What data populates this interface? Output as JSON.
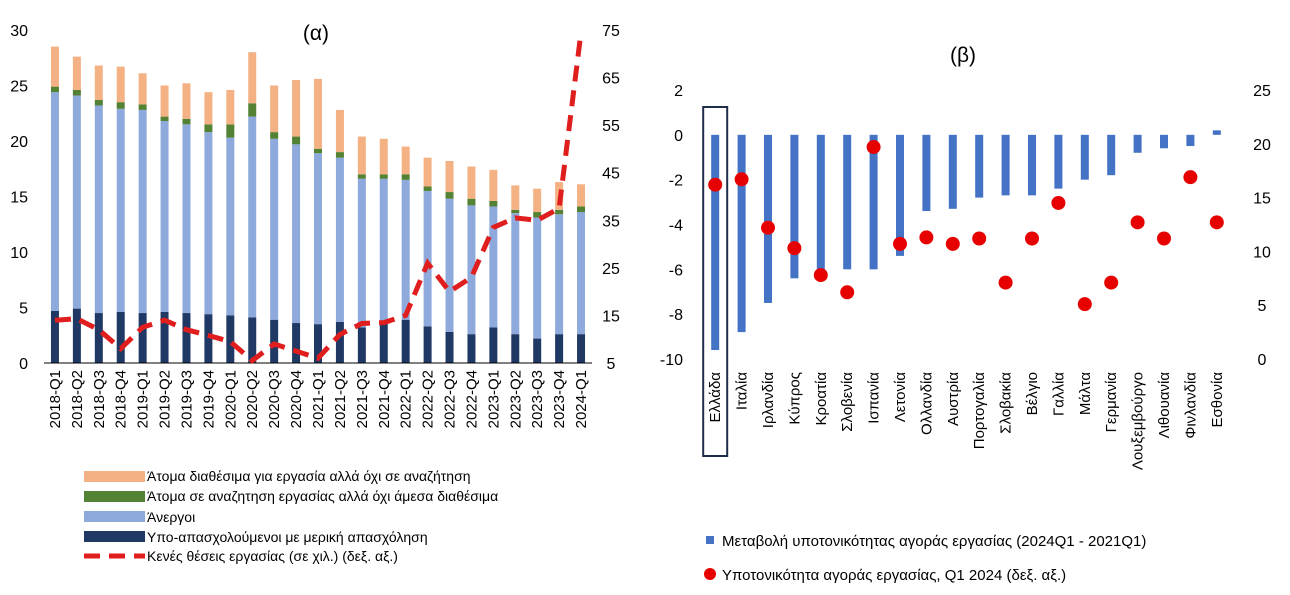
{
  "colors": {
    "available_not_searching": "#F4B183",
    "searching_not_available": "#548235",
    "unemployed": "#8EA9DB",
    "underemployed": "#203864",
    "vacancies": "#E01E1E",
    "change_bar": "#4472C4",
    "slack_dot": "#E60000"
  },
  "chart_data": [
    {
      "type": "bar",
      "stacked": true,
      "title": "(α)",
      "categories": [
        "2018-Q1",
        "2018-Q2",
        "2018-Q3",
        "2018-Q4",
        "2019-Q1",
        "2019-Q2",
        "2019-Q3",
        "2019-Q4",
        "2020-Q1",
        "2020-Q2",
        "2020-Q3",
        "2020-Q4",
        "2021-Q1",
        "2021-Q2",
        "2021-Q3",
        "2021-Q4",
        "2022-Q1",
        "2022-Q2",
        "2022-Q3",
        "2022-Q4",
        "2023-Q1",
        "2023-Q2",
        "2023-Q3",
        "2023-Q4",
        "2024-Q1"
      ],
      "ylim": [
        0,
        30
      ],
      "yticks": [
        0,
        5,
        10,
        15,
        20,
        25,
        30
      ],
      "y2lim": [
        5,
        75
      ],
      "y2ticks": [
        5,
        15,
        25,
        35,
        45,
        55,
        65,
        75
      ],
      "grid": false,
      "legend_position": "bottom",
      "series": [
        {
          "name": "Υπο-απασχολούμενοι με μερική απασχόληση",
          "axis": "left",
          "kind": "bar",
          "values": [
            4.7,
            4.9,
            4.5,
            4.6,
            4.5,
            4.6,
            4.5,
            4.4,
            4.3,
            4.1,
            3.9,
            3.6,
            3.5,
            3.7,
            3.2,
            3.8,
            3.9,
            3.3,
            2.8,
            2.6,
            3.2,
            2.6,
            2.2,
            2.6,
            2.6
          ]
        },
        {
          "name": "Άνεργοι",
          "axis": "left",
          "kind": "bar",
          "values": [
            19.7,
            19.2,
            18.7,
            18.3,
            18.3,
            17.2,
            17.0,
            16.4,
            16.0,
            18.1,
            16.3,
            16.1,
            15.4,
            14.8,
            13.4,
            12.8,
            12.6,
            12.2,
            12.0,
            11.6,
            10.9,
            10.9,
            10.9,
            10.8,
            11.0
          ]
        },
        {
          "name": "Άτομα σε αναζητηση εργασίας αλλά όχι άμεσα διαθέσιμα",
          "axis": "left",
          "kind": "bar",
          "values": [
            0.5,
            0.5,
            0.5,
            0.6,
            0.5,
            0.4,
            0.5,
            0.7,
            1.2,
            1.2,
            0.6,
            0.7,
            0.4,
            0.5,
            0.4,
            0.4,
            0.5,
            0.4,
            0.6,
            0.6,
            0.5,
            0.3,
            0.5,
            0.4,
            0.5
          ]
        },
        {
          "name": "Άτομα διαθέσιμα για εργασία αλλά όχι σε αναζήτηση",
          "axis": "left",
          "kind": "bar",
          "values": [
            3.6,
            3.0,
            3.1,
            3.2,
            2.8,
            2.8,
            3.2,
            2.9,
            3.1,
            4.6,
            4.2,
            5.1,
            6.3,
            3.8,
            3.4,
            3.2,
            2.5,
            2.6,
            2.8,
            2.9,
            2.8,
            2.2,
            2.1,
            2.5,
            2.0
          ]
        },
        {
          "name": "Κενές θέσεις εργασίας (σε χιλ.) (δεξ. αξ.)",
          "axis": "right",
          "kind": "line",
          "dashed": true,
          "values": [
            14.0,
            14.3,
            12.0,
            8.0,
            12.5,
            14.0,
            12.0,
            10.8,
            9.5,
            5.5,
            9.0,
            7.5,
            6.0,
            11.0,
            13.3,
            13.5,
            15.0,
            26.0,
            20.0,
            23.0,
            33.5,
            35.5,
            35.0,
            37.5,
            74.5
          ]
        }
      ]
    },
    {
      "type": "bar",
      "title": "(β)",
      "categories": [
        "Ελλάδα",
        "Ιταλία",
        "Ιρλανδία",
        "Κύπρος",
        "Κροατία",
        "Σλοβενία",
        "Ισπανία",
        "Λετονία",
        "Ολλανδία",
        "Αυστρία",
        "Πορτογαλία",
        "Σλοβακία",
        "Βέλγιο",
        "Γαλλία",
        "Μάλτα",
        "Γερμανία",
        "Λουξεμβούργο",
        "Λιθουανία",
        "Φινλανδία",
        "Εσθονία"
      ],
      "highlighted_category": "Ελλάδα",
      "ylim": [
        -10,
        2
      ],
      "yticks": [
        -10,
        -8,
        -6,
        -4,
        -2,
        0,
        2
      ],
      "y2lim": [
        0,
        25
      ],
      "y2ticks": [
        0,
        5,
        10,
        15,
        20,
        25
      ],
      "grid": false,
      "legend_position": "bottom",
      "series": [
        {
          "name": "Μεταβολή υποτονικότητας αγοράς εργασίας (2024Q1 - 2021Q1)",
          "axis": "left",
          "kind": "bar",
          "values": [
            -9.6,
            -8.8,
            -7.5,
            -6.4,
            -6.2,
            -6.0,
            -6.0,
            -5.4,
            -3.4,
            -3.3,
            -2.8,
            -2.7,
            -2.7,
            -2.4,
            -2.0,
            -1.8,
            -0.8,
            -0.6,
            -0.5,
            0.2
          ]
        },
        {
          "name": "Υποτονικότητα αγοράς εργασίας, Q1 2024 (δεξ. αξ.)",
          "axis": "right",
          "kind": "scatter",
          "values": [
            16.2,
            16.7,
            12.2,
            10.3,
            7.8,
            6.2,
            19.7,
            10.7,
            11.3,
            10.7,
            11.2,
            7.1,
            11.2,
            14.5,
            5.1,
            7.1,
            12.7,
            11.2,
            16.9,
            12.7
          ]
        }
      ]
    }
  ]
}
